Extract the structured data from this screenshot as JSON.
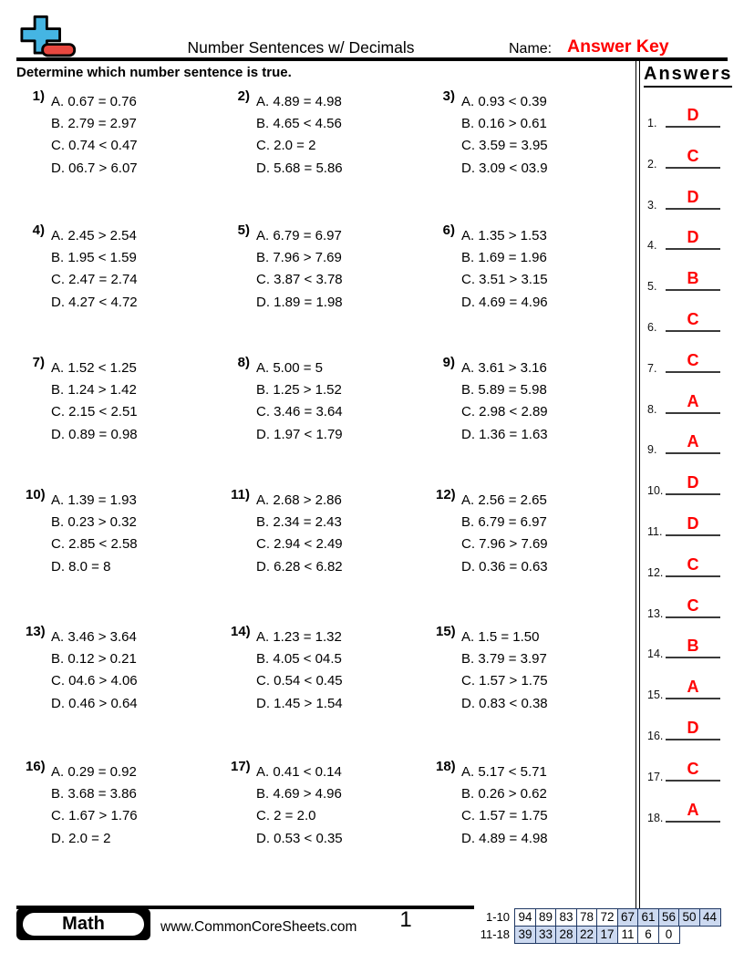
{
  "header": {
    "title": "Number Sentences w/ Decimals",
    "name_label": "Name:",
    "name_value": "Answer Key",
    "instruction": "Determine which number sentence is true."
  },
  "colors": {
    "accent_red": "#fe0000",
    "logo_blue": "#45b5e3",
    "logo_red": "#e8473f",
    "score_cell_blue": "#ccd9f0",
    "score_border": "#1f3864"
  },
  "problems": [
    {
      "num": "1)",
      "options": [
        "A. 0.67 = 0.76",
        "B. 2.79 = 2.97",
        "C. 0.74 < 0.47",
        "D. 06.7 > 6.07"
      ]
    },
    {
      "num": "2)",
      "options": [
        "A. 4.89 = 4.98",
        "B. 4.65 < 4.56",
        "C. 2.0 = 2",
        "D. 5.68 = 5.86"
      ]
    },
    {
      "num": "3)",
      "options": [
        "A. 0.93 < 0.39",
        "B. 0.16 > 0.61",
        "C. 3.59 = 3.95",
        "D. 3.09 < 03.9"
      ]
    },
    {
      "num": "4)",
      "options": [
        "A. 2.45 > 2.54",
        "B. 1.95 < 1.59",
        "C. 2.47 = 2.74",
        "D. 4.27 < 4.72"
      ]
    },
    {
      "num": "5)",
      "options": [
        "A. 6.79 = 6.97",
        "B. 7.96 > 7.69",
        "C. 3.87 < 3.78",
        "D. 1.89 = 1.98"
      ]
    },
    {
      "num": "6)",
      "options": [
        "A. 1.35 > 1.53",
        "B. 1.69 = 1.96",
        "C. 3.51 > 3.15",
        "D. 4.69 = 4.96"
      ]
    },
    {
      "num": "7)",
      "options": [
        "A. 1.52 < 1.25",
        "B. 1.24 > 1.42",
        "C. 2.15 < 2.51",
        "D. 0.89 = 0.98"
      ]
    },
    {
      "num": "8)",
      "options": [
        "A. 5.00 = 5",
        "B. 1.25 > 1.52",
        "C. 3.46 = 3.64",
        "D. 1.97 < 1.79"
      ]
    },
    {
      "num": "9)",
      "options": [
        "A. 3.61 > 3.16",
        "B. 5.89 = 5.98",
        "C. 2.98 < 2.89",
        "D. 1.36 = 1.63"
      ]
    },
    {
      "num": "10)",
      "options": [
        "A. 1.39 = 1.93",
        "B. 0.23 > 0.32",
        "C. 2.85 < 2.58",
        "D. 8.0 = 8"
      ]
    },
    {
      "num": "11)",
      "options": [
        "A. 2.68 > 2.86",
        "B. 2.34 = 2.43",
        "C. 2.94 < 2.49",
        "D. 6.28 < 6.82"
      ]
    },
    {
      "num": "12)",
      "options": [
        "A. 2.56 = 2.65",
        "B. 6.79 = 6.97",
        "C. 7.96 > 7.69",
        "D. 0.36 = 0.63"
      ]
    },
    {
      "num": "13)",
      "options": [
        "A. 3.46 > 3.64",
        "B. 0.12 > 0.21",
        "C. 04.6 > 4.06",
        "D. 0.46 > 0.64"
      ]
    },
    {
      "num": "14)",
      "options": [
        "A. 1.23 = 1.32",
        "B. 4.05 < 04.5",
        "C. 0.54 < 0.45",
        "D. 1.45 > 1.54"
      ]
    },
    {
      "num": "15)",
      "options": [
        "A. 1.5 = 1.50",
        "B. 3.79 = 3.97",
        "C. 1.57 > 1.75",
        "D. 0.83 < 0.38"
      ]
    },
    {
      "num": "16)",
      "options": [
        "A. 0.29 = 0.92",
        "B. 3.68 = 3.86",
        "C. 1.67 > 1.76",
        "D. 2.0 = 2"
      ]
    },
    {
      "num": "17)",
      "options": [
        "A. 0.41 < 0.14",
        "B. 4.69 > 4.96",
        "C. 2 = 2.0",
        "D. 0.53 < 0.35"
      ]
    },
    {
      "num": "18)",
      "options": [
        "A. 5.17 < 5.71",
        "B. 0.26 > 0.62",
        "C. 1.57 = 1.75",
        "D. 4.89 = 4.98"
      ]
    }
  ],
  "answers": {
    "title": "Answers",
    "items": [
      {
        "num": "1.",
        "letter": "D"
      },
      {
        "num": "2.",
        "letter": "C"
      },
      {
        "num": "3.",
        "letter": "D"
      },
      {
        "num": "4.",
        "letter": "D"
      },
      {
        "num": "5.",
        "letter": "B"
      },
      {
        "num": "6.",
        "letter": "C"
      },
      {
        "num": "7.",
        "letter": "C"
      },
      {
        "num": "8.",
        "letter": "A"
      },
      {
        "num": "9.",
        "letter": "A"
      },
      {
        "num": "10.",
        "letter": "D"
      },
      {
        "num": "11.",
        "letter": "D"
      },
      {
        "num": "12.",
        "letter": "C"
      },
      {
        "num": "13.",
        "letter": "C"
      },
      {
        "num": "14.",
        "letter": "B"
      },
      {
        "num": "15.",
        "letter": "A"
      },
      {
        "num": "16.",
        "letter": "D"
      },
      {
        "num": "17.",
        "letter": "C"
      },
      {
        "num": "18.",
        "letter": "A"
      }
    ]
  },
  "footer": {
    "subject": "Math",
    "website": "www.CommonCoreSheets.com",
    "page_number": "1",
    "score_rows": [
      {
        "label": "1-10",
        "cells": [
          {
            "v": "94",
            "hl": false
          },
          {
            "v": "89",
            "hl": false
          },
          {
            "v": "83",
            "hl": false
          },
          {
            "v": "78",
            "hl": false
          },
          {
            "v": "72",
            "hl": false
          },
          {
            "v": "67",
            "hl": true
          },
          {
            "v": "61",
            "hl": true
          },
          {
            "v": "56",
            "hl": true
          },
          {
            "v": "50",
            "hl": true
          },
          {
            "v": "44",
            "hl": true
          }
        ]
      },
      {
        "label": "11-18",
        "cells": [
          {
            "v": "39",
            "hl": true
          },
          {
            "v": "33",
            "hl": true
          },
          {
            "v": "28",
            "hl": true
          },
          {
            "v": "22",
            "hl": true
          },
          {
            "v": "17",
            "hl": true
          },
          {
            "v": "11",
            "hl": false
          },
          {
            "v": "6",
            "hl": false
          },
          {
            "v": "0",
            "hl": false
          }
        ]
      }
    ]
  }
}
